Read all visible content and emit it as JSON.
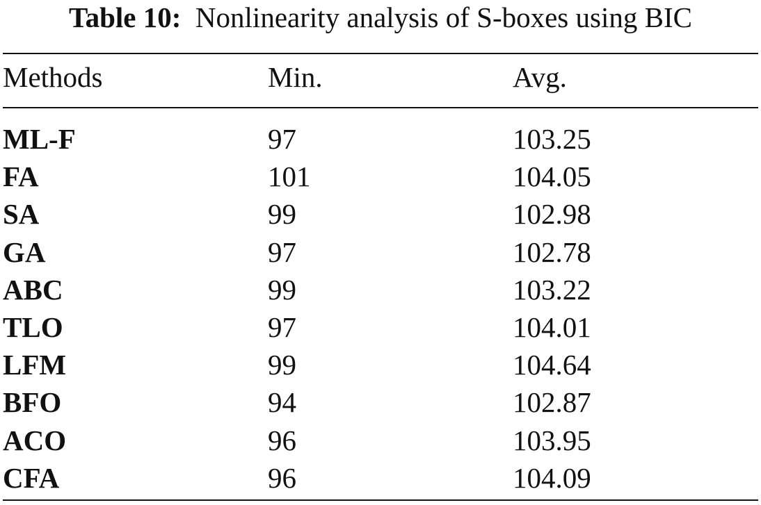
{
  "caption": {
    "label": "Table 10:",
    "text": "Nonlinearity analysis of S-boxes using BIC"
  },
  "table": {
    "columns": [
      "Methods",
      "Min.",
      "Avg."
    ],
    "rows": [
      {
        "method": "ML-F",
        "min": "97",
        "avg": "103.25"
      },
      {
        "method": "FA",
        "min": "101",
        "avg": "104.05"
      },
      {
        "method": "SA",
        "min": "99",
        "avg": "102.98"
      },
      {
        "method": "GA",
        "min": "97",
        "avg": "102.78"
      },
      {
        "method": "ABC",
        "min": "99",
        "avg": "103.22"
      },
      {
        "method": "TLO",
        "min": "97",
        "avg": "104.01"
      },
      {
        "method": "LFM",
        "min": "99",
        "avg": "104.64"
      },
      {
        "method": "BFO",
        "min": "94",
        "avg": "102.87"
      },
      {
        "method": "ACO",
        "min": "96",
        "avg": "103.95"
      },
      {
        "method": "CFA",
        "min": "96",
        "avg": "104.09"
      }
    ]
  }
}
